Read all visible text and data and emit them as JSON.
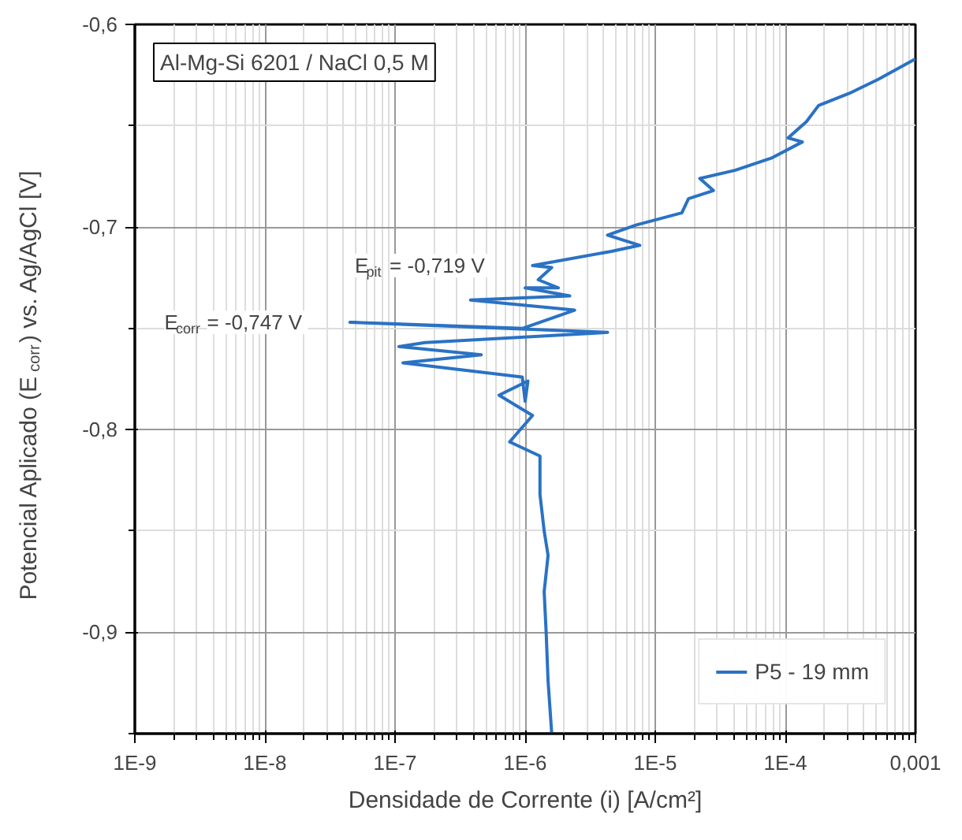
{
  "chart_data": {
    "type": "line",
    "xlabel": "Densidade de Corrente (i) [A/cm²]",
    "ylabel": "Potencial Aplicado (E$_{corr}$) vs. Ag/AgCl [V]",
    "annotations": [
      "Al-Mg-Si 6201 / NaCl 0,5 M",
      {
        "text": "E$_{pit}$ = -0,719 V",
        "x": 1.14e-06,
        "y": -0.719
      },
      {
        "text": "E$_{corr}$ = -0,747 V",
        "x": 4.5e-08,
        "y": -0.747
      }
    ],
    "series": [
      {
        "name": "P5 - 19 mm",
        "color": "#2a72c4",
        "x": [
          1.6e-06,
          1.5e-06,
          1.45e-06,
          1.4e-06,
          1.5e-06,
          1.4e-06,
          1.3e-06,
          1.3e-06,
          7.6e-07,
          1.14e-06,
          6.3e-07,
          1.05e-06,
          1e-06,
          9.5e-07,
          1.15e-07,
          4.6e-07,
          1.07e-07,
          1.7e-07,
          4.3e-06,
          4.5e-08,
          9.6e-07,
          2.4e-06,
          3.8e-07,
          2.2e-06,
          1e-06,
          1.8e-06,
          1.26e-06,
          1.6e-06,
          1.14e-06,
          4.6e-06,
          7.6e-06,
          4.3e-06,
          7.1e-06,
          1.6e-05,
          1.8e-05,
          2.8e-05,
          2.2e-05,
          4.1e-05,
          7.8e-05,
          0.000135,
          0.000105,
          0.000145,
          0.00018,
          0.00031,
          0.00052,
          0.001
        ],
        "values": [
          -0.95,
          -0.924,
          -0.9,
          -0.88,
          -0.862,
          -0.85,
          -0.832,
          -0.813,
          -0.806,
          -0.793,
          -0.783,
          -0.776,
          -0.786,
          -0.774,
          -0.767,
          -0.763,
          -0.759,
          -0.757,
          -0.752,
          -0.747,
          -0.75,
          -0.741,
          -0.736,
          -0.734,
          -0.73,
          -0.73,
          -0.726,
          -0.72,
          -0.719,
          -0.712,
          -0.709,
          -0.704,
          -0.699,
          -0.693,
          -0.686,
          -0.682,
          -0.676,
          -0.672,
          -0.666,
          -0.658,
          -0.656,
          -0.648,
          -0.64,
          -0.634,
          -0.627,
          -0.617
        ]
      }
    ],
    "log": "x",
    "xlim": [
      1e-09,
      0.001
    ],
    "ylim": [
      -0.95,
      -0.6
    ],
    "xticks": [
      {
        "value": 1e-09,
        "label": "1E-9"
      },
      {
        "value": 1e-08,
        "label": "1E-8"
      },
      {
        "value": 1e-07,
        "label": "1E-7"
      },
      {
        "value": 1e-06,
        "label": "1E-6"
      },
      {
        "value": 1e-05,
        "label": "1E-5"
      },
      {
        "value": 0.0001,
        "label": "1E-4"
      },
      {
        "value": 0.001,
        "label": "0,001"
      }
    ],
    "yticks": [
      {
        "value": -0.9,
        "label": "-0,9"
      },
      {
        "value": -0.8,
        "label": "-0,8"
      },
      {
        "value": -0.7,
        "label": "-0,7"
      },
      {
        "value": -0.6,
        "label": "-0,6"
      }
    ],
    "grid": true,
    "legend": "bottom right",
    "line_style": "solid",
    "marker": "none"
  }
}
